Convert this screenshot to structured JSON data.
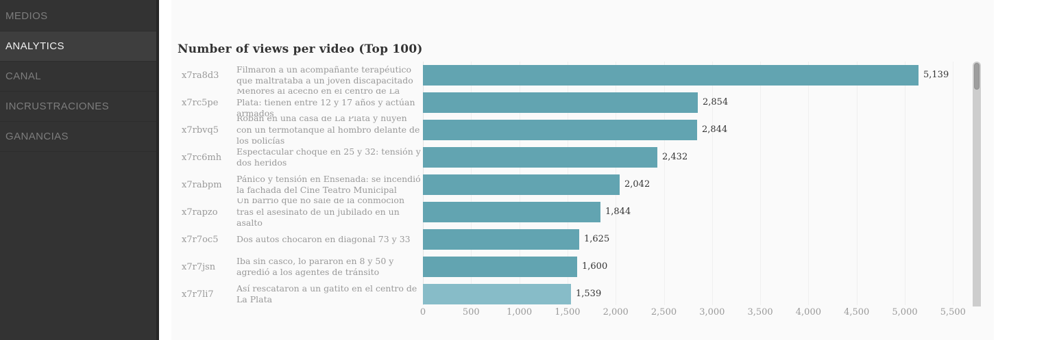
{
  "sidebar": {
    "items": [
      {
        "label": "MEDIOS",
        "active": false
      },
      {
        "label": "ANALYTICS",
        "active": true
      },
      {
        "label": "CANAL",
        "active": false
      },
      {
        "label": "INCRUSTRACIONES",
        "active": false
      },
      {
        "label": "GANANCIAS",
        "active": false
      }
    ]
  },
  "main": {
    "title": "Number of views per video (Top 100)"
  },
  "chart_data": {
    "type": "bar",
    "orientation": "horizontal",
    "title": "Number of views per video (Top 100)",
    "categories": [
      "x7ra8d3",
      "x7rc5pe",
      "x7rbvq5",
      "x7rc6mh",
      "x7rabpm",
      "x7rapzo",
      "x7r7oc5",
      "x7r7jsn",
      "x7r7li7"
    ],
    "labels": [
      "Filmaron a un acompañante terapéutico que maltrataba a un joven discapacitado",
      "Menores al acecho en el centro de La Plata: tienen entre 12 y 17 años y actúan armados",
      "Roban en una casa de La Plata y huyen con un termotanque al hombro delante de los policías",
      "Espectacular choque en 25 y 32: tensión y dos heridos",
      "Pánico y tensión en Ensenada: se incendió la fachada del Cine Teatro Municipal",
      "Un barrio que no sale de la conmoción tras el asesinato de un jubilado en un asalto",
      "Dos autos chocaron en diagonal 73 y 33",
      "Iba sin casco, lo pararon en 8 y 50 y agredió a los agentes de tránsito",
      "Así rescataron a un gatito en el centro de La Plata"
    ],
    "values": [
      5139,
      2854,
      2844,
      2432,
      2042,
      1844,
      1625,
      1600,
      1539
    ],
    "value_labels": [
      "5,139",
      "2,854",
      "2,844",
      "2,432",
      "2,042",
      "1,844",
      "1,625",
      "1,600",
      "1,539"
    ],
    "xlabel": "",
    "ylabel": "",
    "xlim": [
      0,
      5500
    ],
    "x_ticks": [
      "0",
      "500",
      "1,000",
      "1,500",
      "2,000",
      "2,500",
      "3,000",
      "3,500",
      "4,000",
      "4,500",
      "5,000",
      "5,500"
    ],
    "grid": true,
    "legend": false,
    "bar_color": "#62a4b1",
    "highlight_color": "#87bcc8",
    "highlight_index": 8,
    "text_color": "#999999",
    "value_color": "#333333"
  }
}
